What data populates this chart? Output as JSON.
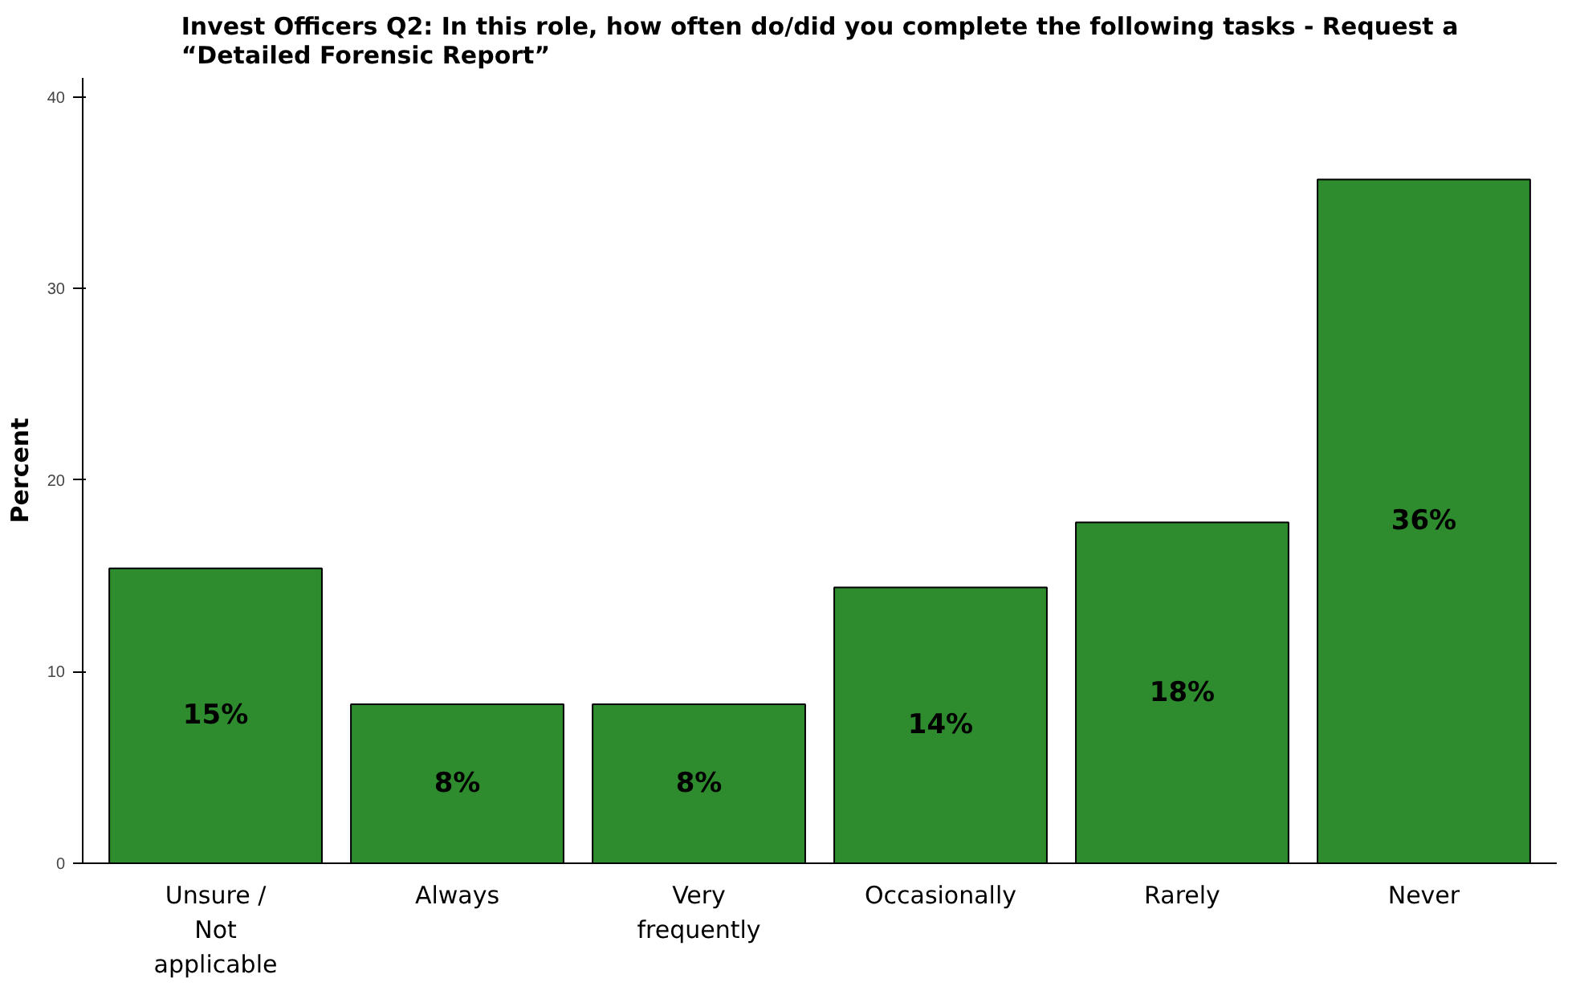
{
  "chart_data": {
    "type": "bar",
    "title": "Invest Officers Q2: In this role, how often do/did you complete the following tasks - Request a\n“Detailed Forensic Report”",
    "ylabel": "Percent",
    "categories": [
      "Unsure /\nNot\napplicable",
      "Always",
      "Very\nfrequently",
      "Occasionally",
      "Rarely",
      "Never"
    ],
    "values": [
      15.4,
      8.3,
      8.3,
      14.4,
      17.8,
      35.7
    ],
    "value_labels": [
      "15%",
      "8%",
      "8%",
      "14%",
      "18%",
      "36%"
    ],
    "color": "#2e8b2e",
    "ylim": [
      0,
      41
    ],
    "yticks": [
      0,
      10,
      20,
      30,
      40
    ],
    "grid": false
  }
}
